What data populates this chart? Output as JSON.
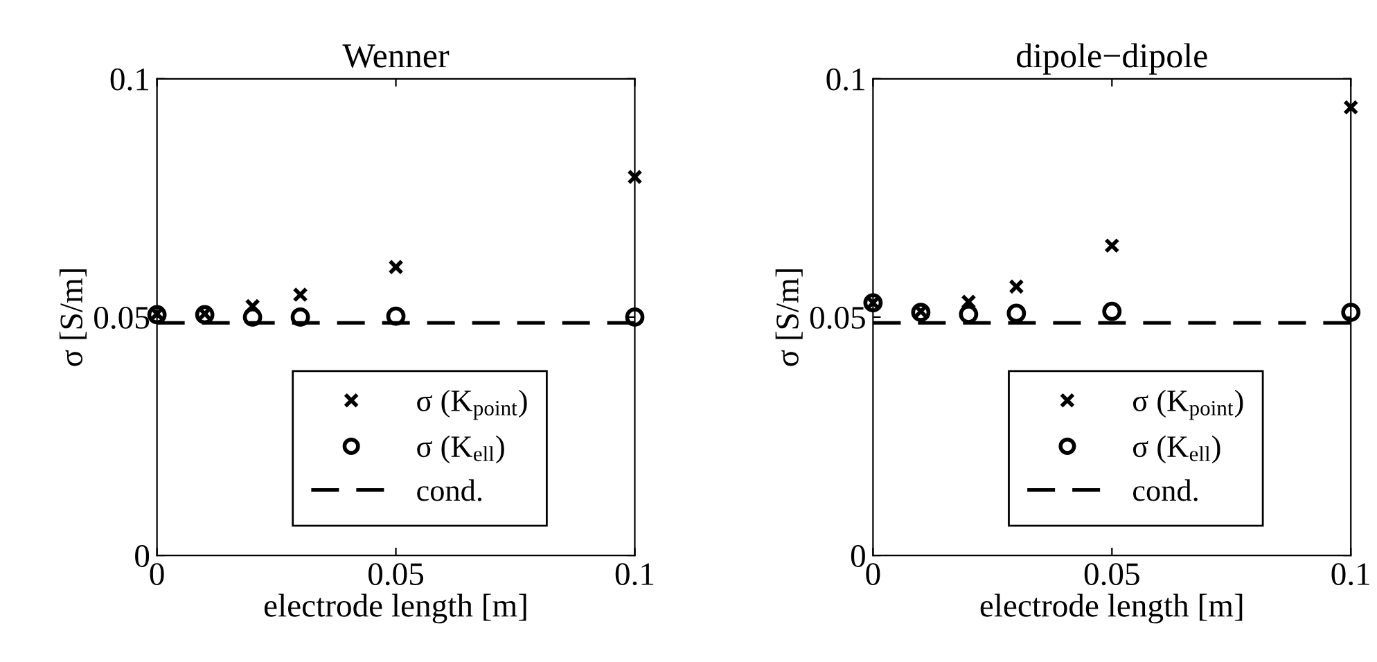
{
  "chart_data": [
    {
      "type": "scatter",
      "title": "Wenner",
      "xlabel": "electrode length [m]",
      "ylabel": "σ [S/m]",
      "x": [
        0,
        0.01,
        0.02,
        0.03,
        0.05,
        0.1
      ],
      "series": [
        {
          "name": "σ (K$_{point}$)",
          "color": "#000000",
          "marker": "cross",
          "values": [
            0.0507,
            0.0507,
            0.0523,
            0.0547,
            0.0605,
            0.0794
          ]
        },
        {
          "name": "σ (K$_{ell}$)",
          "color": "#000000",
          "marker": "circle",
          "values": [
            0.0505,
            0.0505,
            0.05,
            0.05,
            0.0502,
            0.05
          ]
        }
      ],
      "ref_lines": [
        {
          "axis": "y",
          "value": 0.0488,
          "label": "cond.",
          "color": "#000000",
          "line_style": "dashed"
        }
      ],
      "xlim": [
        0,
        0.1
      ],
      "ylim": [
        0,
        0.1
      ],
      "xticks": [
        0,
        0.05,
        0.1
      ],
      "yticks": [
        0,
        0.05,
        0.1
      ],
      "grid": false,
      "legend": "bottom"
    },
    {
      "type": "scatter",
      "title": "dipole−dipole",
      "xlabel": "electrode length [m]",
      "ylabel": "σ [S/m]",
      "x": [
        0,
        0.01,
        0.02,
        0.03,
        0.05,
        0.1
      ],
      "series": [
        {
          "name": "σ (K$_{point}$)",
          "color": "#000000",
          "marker": "cross",
          "values": [
            0.053,
            0.0512,
            0.0532,
            0.0564,
            0.065,
            0.094
          ]
        },
        {
          "name": "σ (K$_{ell}$)",
          "color": "#000000",
          "marker": "circle",
          "values": [
            0.053,
            0.051,
            0.0506,
            0.0508,
            0.0512,
            0.051
          ]
        }
      ],
      "ref_lines": [
        {
          "axis": "y",
          "value": 0.0488,
          "label": "cond.",
          "color": "#000000",
          "line_style": "dashed"
        }
      ],
      "xlim": [
        0,
        0.1
      ],
      "ylim": [
        0,
        0.1
      ],
      "xticks": [
        0,
        0.05,
        0.1
      ],
      "yticks": [
        0,
        0.05,
        0.1
      ],
      "grid": false,
      "legend": "bottom"
    }
  ]
}
